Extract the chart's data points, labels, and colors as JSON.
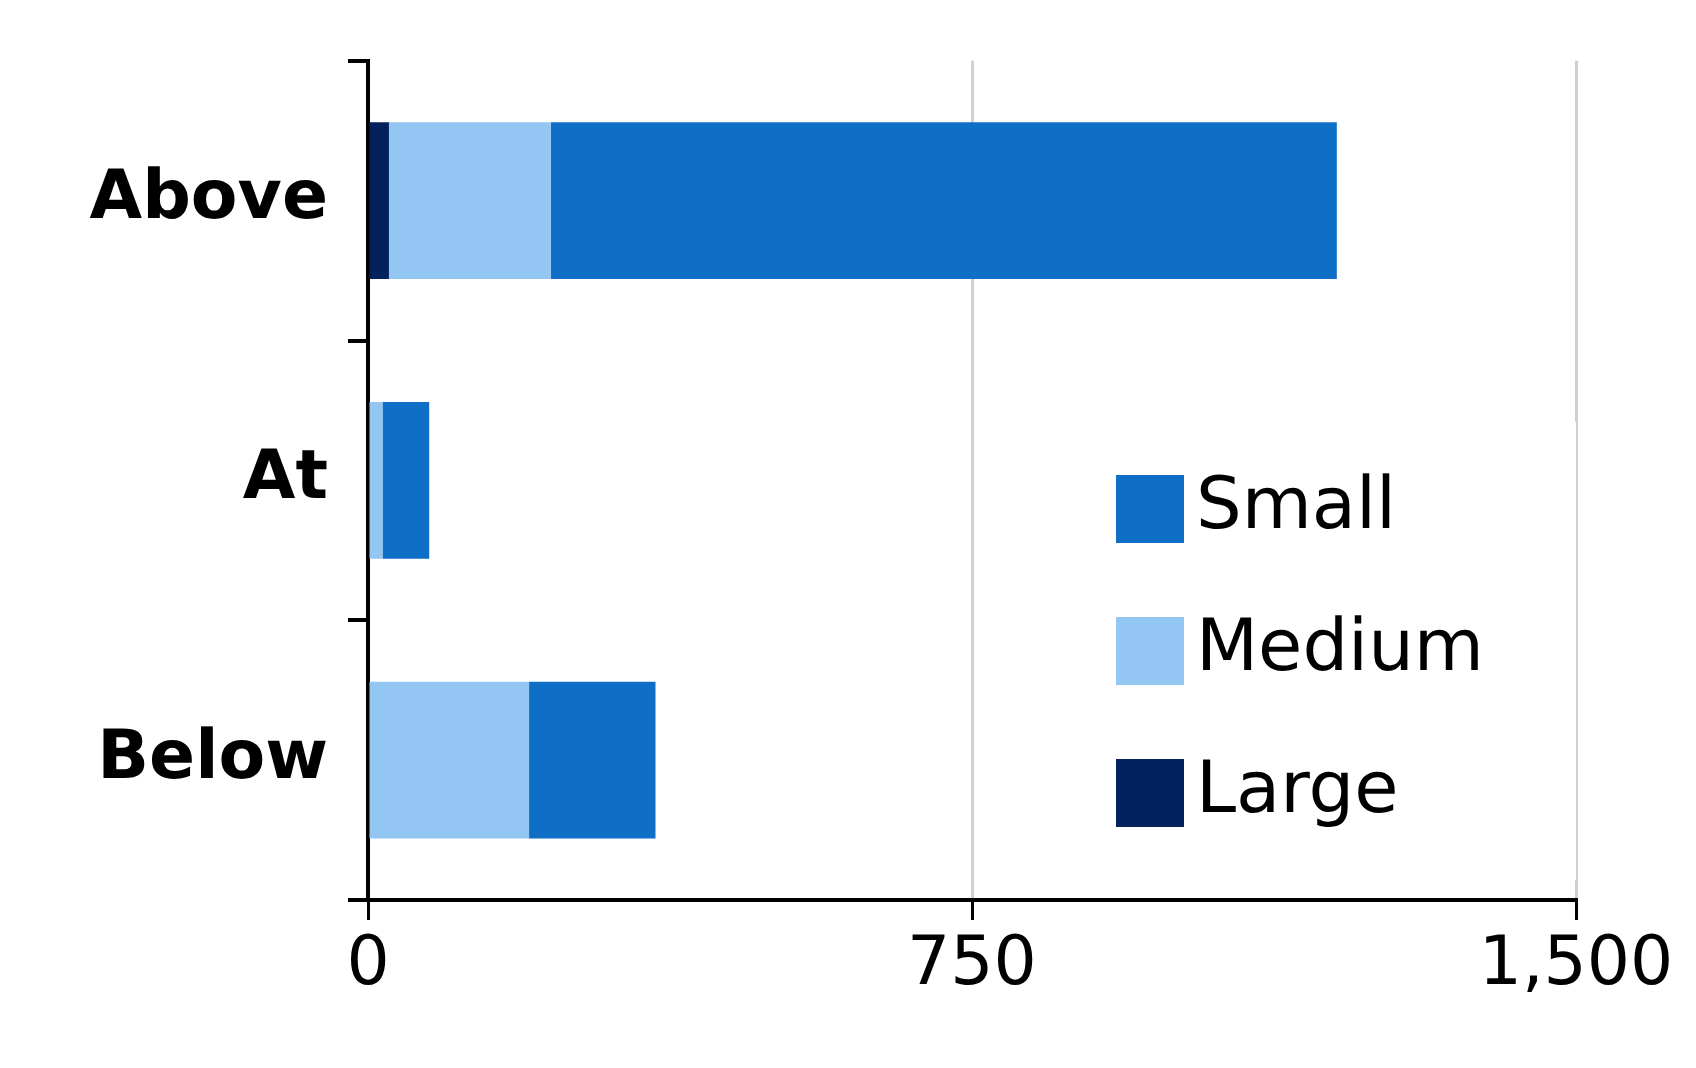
{
  "chart_data": {
    "type": "bar",
    "orientation": "horizontal",
    "stacked": true,
    "categories": [
      "Above",
      "At",
      "Below"
    ],
    "series": [
      {
        "name": "Large",
        "color": "#03215c",
        "values": [
          26,
          0,
          0
        ]
      },
      {
        "name": "Medium",
        "color": "#93c6f3",
        "values": [
          201,
          18,
          200
        ]
      },
      {
        "name": "Small",
        "color": "#0f6fc6",
        "values": [
          976,
          58,
          157
        ]
      }
    ],
    "xlim": [
      0,
      1500
    ],
    "xticks": [
      0,
      750,
      {
        "value": 1500,
        "label": "1,500"
      }
    ],
    "grid": "x",
    "legend": "bottom right"
  }
}
